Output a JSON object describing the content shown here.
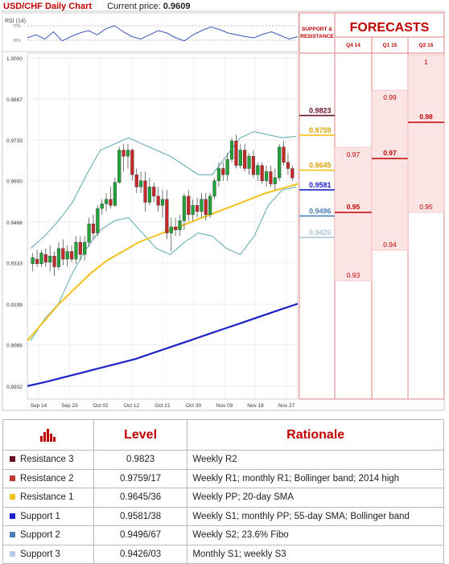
{
  "header": {
    "title": "USD/CHF Daily Chart",
    "price_label": "Current price:",
    "price_value": "0.9609"
  },
  "rsi_label": "RSI (14)",
  "rsi_ticks": [
    "70%",
    "30%"
  ],
  "colors": {
    "bull": "#22a33a",
    "bear": "#c62828",
    "sma20": "#f2c21a",
    "sma55": "#1b22c8",
    "bollinger": "#5ba8b0",
    "panel": "#fbe4e4",
    "accent": "#c00000"
  },
  "chart_data": {
    "type": "candlestick",
    "ylim": [
      0.89,
      1.0
    ],
    "y_ticks": [
      "1.0000",
      "0.9867",
      "0.9733",
      "0.9600",
      "0.9466",
      "0.9333",
      "0.9199",
      "0.9066",
      "0.8932"
    ],
    "x_ticks": [
      "Sep 14",
      "Sep 23",
      "Oct 02",
      "Oct 12",
      "Oct 21",
      "Oct 30",
      "Nov 09",
      "Nov 18",
      "Nov 27"
    ],
    "candles": [
      [
        0.933,
        0.9365,
        0.9305,
        0.935
      ],
      [
        0.9345,
        0.9375,
        0.932,
        0.933
      ],
      [
        0.933,
        0.9375,
        0.932,
        0.9365
      ],
      [
        0.936,
        0.938,
        0.932,
        0.9335
      ],
      [
        0.9335,
        0.939,
        0.9305,
        0.9355
      ],
      [
        0.9355,
        0.937,
        0.929,
        0.932
      ],
      [
        0.932,
        0.94,
        0.931,
        0.938
      ],
      [
        0.938,
        0.941,
        0.9325,
        0.9345
      ],
      [
        0.9345,
        0.939,
        0.932,
        0.937
      ],
      [
        0.937,
        0.939,
        0.9335,
        0.9345
      ],
      [
        0.9345,
        0.942,
        0.933,
        0.94
      ],
      [
        0.94,
        0.942,
        0.934,
        0.936
      ],
      [
        0.936,
        0.942,
        0.934,
        0.94
      ],
      [
        0.94,
        0.948,
        0.9385,
        0.946
      ],
      [
        0.946,
        0.949,
        0.941,
        0.943
      ],
      [
        0.943,
        0.952,
        0.942,
        0.951
      ],
      [
        0.951,
        0.954,
        0.949,
        0.9525
      ],
      [
        0.9525,
        0.956,
        0.95,
        0.954
      ],
      [
        0.954,
        0.958,
        0.951,
        0.952
      ],
      [
        0.952,
        0.961,
        0.9515,
        0.9595
      ],
      [
        0.9595,
        0.971,
        0.959,
        0.97
      ],
      [
        0.97,
        0.972,
        0.963,
        0.968
      ],
      [
        0.968,
        0.972,
        0.964,
        0.97
      ],
      [
        0.97,
        0.9705,
        0.96,
        0.962
      ],
      [
        0.962,
        0.964,
        0.956,
        0.958
      ],
      [
        0.958,
        0.963,
        0.956,
        0.96
      ],
      [
        0.96,
        0.963,
        0.95,
        0.953
      ],
      [
        0.953,
        0.961,
        0.952,
        0.958
      ],
      [
        0.958,
        0.9595,
        0.953,
        0.955
      ],
      [
        0.955,
        0.958,
        0.95,
        0.952
      ],
      [
        0.952,
        0.957,
        0.948,
        0.954
      ],
      [
        0.954,
        0.957,
        0.941,
        0.943
      ],
      [
        0.943,
        0.948,
        0.937,
        0.945
      ],
      [
        0.945,
        0.948,
        0.942,
        0.944
      ],
      [
        0.944,
        0.949,
        0.942,
        0.947
      ],
      [
        0.947,
        0.956,
        0.944,
        0.955
      ],
      [
        0.955,
        0.957,
        0.947,
        0.949
      ],
      [
        0.949,
        0.954,
        0.947,
        0.952
      ],
      [
        0.952,
        0.9545,
        0.948,
        0.95
      ],
      [
        0.95,
        0.956,
        0.948,
        0.954
      ],
      [
        0.954,
        0.956,
        0.947,
        0.949
      ],
      [
        0.949,
        0.956,
        0.948,
        0.955
      ],
      [
        0.955,
        0.961,
        0.954,
        0.96
      ],
      [
        0.96,
        0.966,
        0.958,
        0.964
      ],
      [
        0.964,
        0.966,
        0.96,
        0.962
      ],
      [
        0.962,
        0.969,
        0.96,
        0.967
      ],
      [
        0.967,
        0.974,
        0.966,
        0.973
      ],
      [
        0.973,
        0.975,
        0.964,
        0.965
      ],
      [
        0.965,
        0.972,
        0.964,
        0.97
      ],
      [
        0.97,
        0.972,
        0.963,
        0.964
      ],
      [
        0.964,
        0.969,
        0.962,
        0.968
      ],
      [
        0.968,
        0.97,
        0.961,
        0.962
      ],
      [
        0.962,
        0.966,
        0.96,
        0.965
      ],
      [
        0.965,
        0.966,
        0.959,
        0.96
      ],
      [
        0.96,
        0.965,
        0.958,
        0.963
      ],
      [
        0.963,
        0.965,
        0.958,
        0.959
      ],
      [
        0.959,
        0.964,
        0.957,
        0.961
      ],
      [
        0.961,
        0.972,
        0.96,
        0.971
      ],
      [
        0.971,
        0.973,
        0.965,
        0.966
      ],
      [
        0.966,
        0.969,
        0.962,
        0.964
      ],
      [
        0.964,
        0.965,
        0.96,
        0.9609
      ]
    ],
    "sma20": [
      0.908,
      0.914,
      0.92,
      0.925,
      0.93,
      0.934,
      0.937,
      0.94,
      0.942,
      0.944,
      0.946,
      0.948,
      0.95,
      0.952,
      0.954,
      0.956,
      0.9575,
      0.959
    ],
    "sma55": [
      0.8932,
      0.8945,
      0.896,
      0.8975,
      0.899,
      0.9005,
      0.902,
      0.904,
      0.906,
      0.908,
      0.91,
      0.912,
      0.914,
      0.916,
      0.918,
      0.92
    ],
    "bb_upper": [
      0.938,
      0.942,
      0.947,
      0.953,
      0.962,
      0.97,
      0.972,
      0.974,
      0.972,
      0.97,
      0.968,
      0.965,
      0.962,
      0.962,
      0.968,
      0.974,
      0.976,
      0.975,
      0.974,
      0.9745
    ],
    "bb_lower": [
      0.908,
      0.915,
      0.92,
      0.93,
      0.938,
      0.944,
      0.947,
      0.948,
      0.943,
      0.938,
      0.936,
      0.94,
      0.943,
      0.942,
      0.938,
      0.936,
      0.942,
      0.952,
      0.957,
      0.958
    ],
    "rsi": [
      50,
      55,
      48,
      60,
      45,
      52,
      58,
      62,
      55,
      65,
      70,
      60,
      52,
      48,
      55,
      62,
      58,
      50,
      45,
      55,
      62,
      68,
      64,
      58,
      55,
      52,
      50,
      56,
      60,
      54,
      48,
      52
    ],
    "levels": [
      {
        "value": "0.9823",
        "y": 0.9823,
        "color": "#6b1024"
      },
      {
        "value": "0.9759",
        "y": 0.9759,
        "color": "#f2c21a"
      },
      {
        "value": "0.9645",
        "y": 0.9645,
        "color": "#f2c21a"
      },
      {
        "value": "0.9581",
        "y": 0.9581,
        "color": "#1b22c8"
      },
      {
        "value": "0.9496",
        "y": 0.9496,
        "color": "#4a7fb5"
      },
      {
        "value": "0.9426",
        "y": 0.9426,
        "color": "#a9c7d6"
      }
    ]
  },
  "forecasts": {
    "title": "FORECASTS",
    "sr_header": "SUPPORT & RESISTANCE",
    "columns": [
      {
        "label": "Q4 14",
        "top": "0.97",
        "mid": "0.95",
        "bottom": "0.93"
      },
      {
        "label": "Q1 15",
        "top": "0.99",
        "mid": "0.97",
        "bottom": "0.94"
      },
      {
        "label": "Q2 15",
        "top": "1",
        "mid": "0.98",
        "bottom": "0.95"
      }
    ]
  },
  "table": {
    "headers": {
      "level": "Level",
      "rationale": "Rationale"
    },
    "rows": [
      {
        "name": "Resistance 3",
        "level": "0.9823",
        "rationale": "Weekly R2",
        "color": "#6b1024"
      },
      {
        "name": "Resistance 2",
        "level": "0.9759/17",
        "rationale": "Weekly R1; monthly R1; Bollinger band; 2014 high",
        "color": "#c0392b"
      },
      {
        "name": "Resistance 1",
        "level": "0.9645/36",
        "rationale": "Weekly PP; 20-day SMA",
        "color": "#f2c21a"
      },
      {
        "name": "Support 1",
        "level": "0.9581/38",
        "rationale": "Weekly S1; monthly PP; 55-day SMA; Bollinger band",
        "color": "#1b22c8"
      },
      {
        "name": "Support 2",
        "level": "0.9496/67",
        "rationale": "Weekly S2; 23.6% Fibo",
        "color": "#4a7fb5"
      },
      {
        "name": "Support 3",
        "level": "0.9426/03",
        "rationale": "Monthly S1; weekly S3",
        "color": "#b7c9e6"
      }
    ]
  }
}
